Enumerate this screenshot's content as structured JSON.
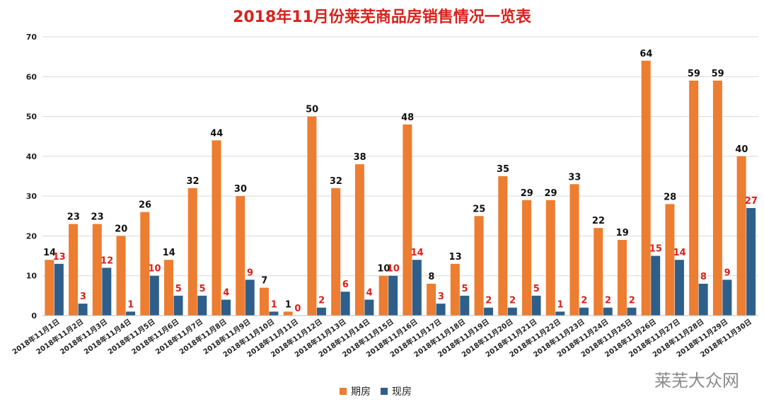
{
  "chart_data": {
    "type": "bar",
    "title": "2018年11月份莱芜商品房销售情况一览表",
    "ylim": [
      0,
      70
    ],
    "yticks": [
      0,
      10,
      20,
      30,
      40,
      50,
      60,
      70
    ],
    "categories": [
      "2018年11月1日",
      "2018年11月2日",
      "2018年11月3日",
      "2018年11月4日",
      "2018年11月5日",
      "2018年11月6日",
      "2018年11月7日",
      "2018年11月8日",
      "2018年11月9日",
      "2018年11月10日",
      "2018年11月11日",
      "2018年11月12日",
      "2018年11月13日",
      "2018年11月14日",
      "2018年11月15日",
      "2018年11月16日",
      "2018年11月17日",
      "2018年11月18日",
      "2018年11月19日",
      "2018年11月20日",
      "2018年11月21日",
      "2018年11月22日",
      "2018年11月23日",
      "2018年11月24日",
      "2018年11月25日",
      "2018年11月26日",
      "2018年11月27日",
      "2018年11月28日",
      "2018年11月29日",
      "2018年11月30日"
    ],
    "series": [
      {
        "name": "期房",
        "color": "#ed7d31",
        "label_color": "#111111",
        "values": [
          14,
          23,
          23,
          20,
          26,
          14,
          32,
          44,
          30,
          7,
          1,
          50,
          32,
          38,
          10,
          48,
          8,
          13,
          25,
          35,
          29,
          29,
          33,
          22,
          19,
          64,
          28,
          59,
          59,
          40
        ]
      },
      {
        "name": "现房",
        "color": "#2e5f8a",
        "label_color": "#d9221c",
        "values": [
          13,
          3,
          12,
          1,
          10,
          5,
          5,
          4,
          9,
          1,
          0,
          2,
          6,
          4,
          10,
          14,
          3,
          5,
          2,
          2,
          5,
          1,
          2,
          2,
          2,
          15,
          14,
          8,
          9,
          27
        ]
      }
    ],
    "grid": true,
    "legend_position": "bottom"
  },
  "watermark_text": "莱芜大众网"
}
